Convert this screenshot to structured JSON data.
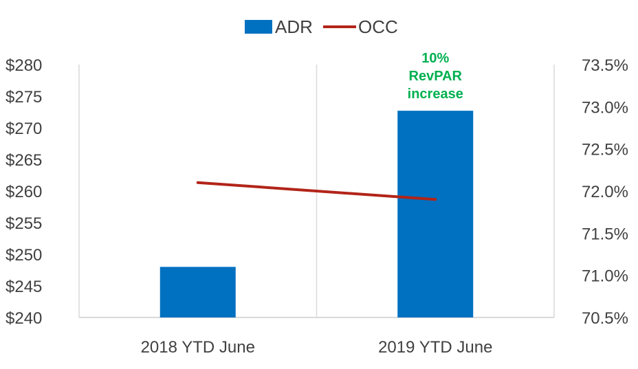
{
  "chart_data": {
    "type": "bar",
    "categories": [
      "2018 YTD June",
      "2019 YTD June"
    ],
    "series": [
      {
        "name": "ADR",
        "type": "bar",
        "axis": "left",
        "values": [
          248,
          272.7
        ],
        "color": "#0070C0"
      },
      {
        "name": "OCC",
        "type": "line",
        "axis": "right",
        "values": [
          72.1,
          71.9
        ],
        "color": "#B22418"
      }
    ],
    "y_left": {
      "min": 240,
      "max": 280,
      "step": 5,
      "tick_labels": [
        "$240",
        "$245",
        "$250",
        "$255",
        "$260",
        "$265",
        "$270",
        "$275",
        "$280"
      ]
    },
    "y_right": {
      "min": 70.5,
      "max": 73.5,
      "step": 0.5,
      "tick_labels": [
        "70.5%",
        "71.0%",
        "71.5%",
        "72.0%",
        "72.5%",
        "73.0%",
        "73.5%"
      ]
    },
    "annotation": {
      "lines": [
        "10%",
        "RevPAR",
        "increase"
      ],
      "color": "#00B050",
      "category_index": 1
    },
    "legend_position": "top-center",
    "grid": "vertical-category-lines"
  }
}
